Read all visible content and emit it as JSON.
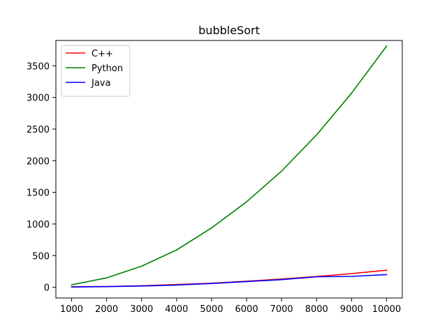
{
  "chart_data": {
    "type": "line",
    "title": "bubbleSort",
    "xlabel": "",
    "ylabel": "",
    "x": [
      1000,
      2000,
      3000,
      4000,
      5000,
      6000,
      7000,
      8000,
      9000,
      10000
    ],
    "series": [
      {
        "name": "C++",
        "color": "#ff0000",
        "values": [
          7,
          12,
          24,
          43,
          64,
          95,
          130,
          170,
          216,
          270
        ]
      },
      {
        "name": "Python",
        "color": "#008000",
        "values": [
          39,
          148,
          333,
          590,
          938,
          1350,
          1836,
          2407,
          3068,
          3810
        ]
      },
      {
        "name": "Java",
        "color": "#0000ff",
        "values": [
          4,
          10,
          20,
          35,
          60,
          90,
          120,
          165,
          172,
          200
        ]
      }
    ],
    "xlim": [
      550,
      10450
    ],
    "ylim": [
      -170,
      3900
    ],
    "xticks": [
      1000,
      2000,
      3000,
      4000,
      5000,
      6000,
      7000,
      8000,
      9000,
      10000
    ],
    "yticks": [
      0,
      500,
      1000,
      1500,
      2000,
      2500,
      3000,
      3500
    ],
    "grid": false,
    "legend_position": "top-left"
  }
}
